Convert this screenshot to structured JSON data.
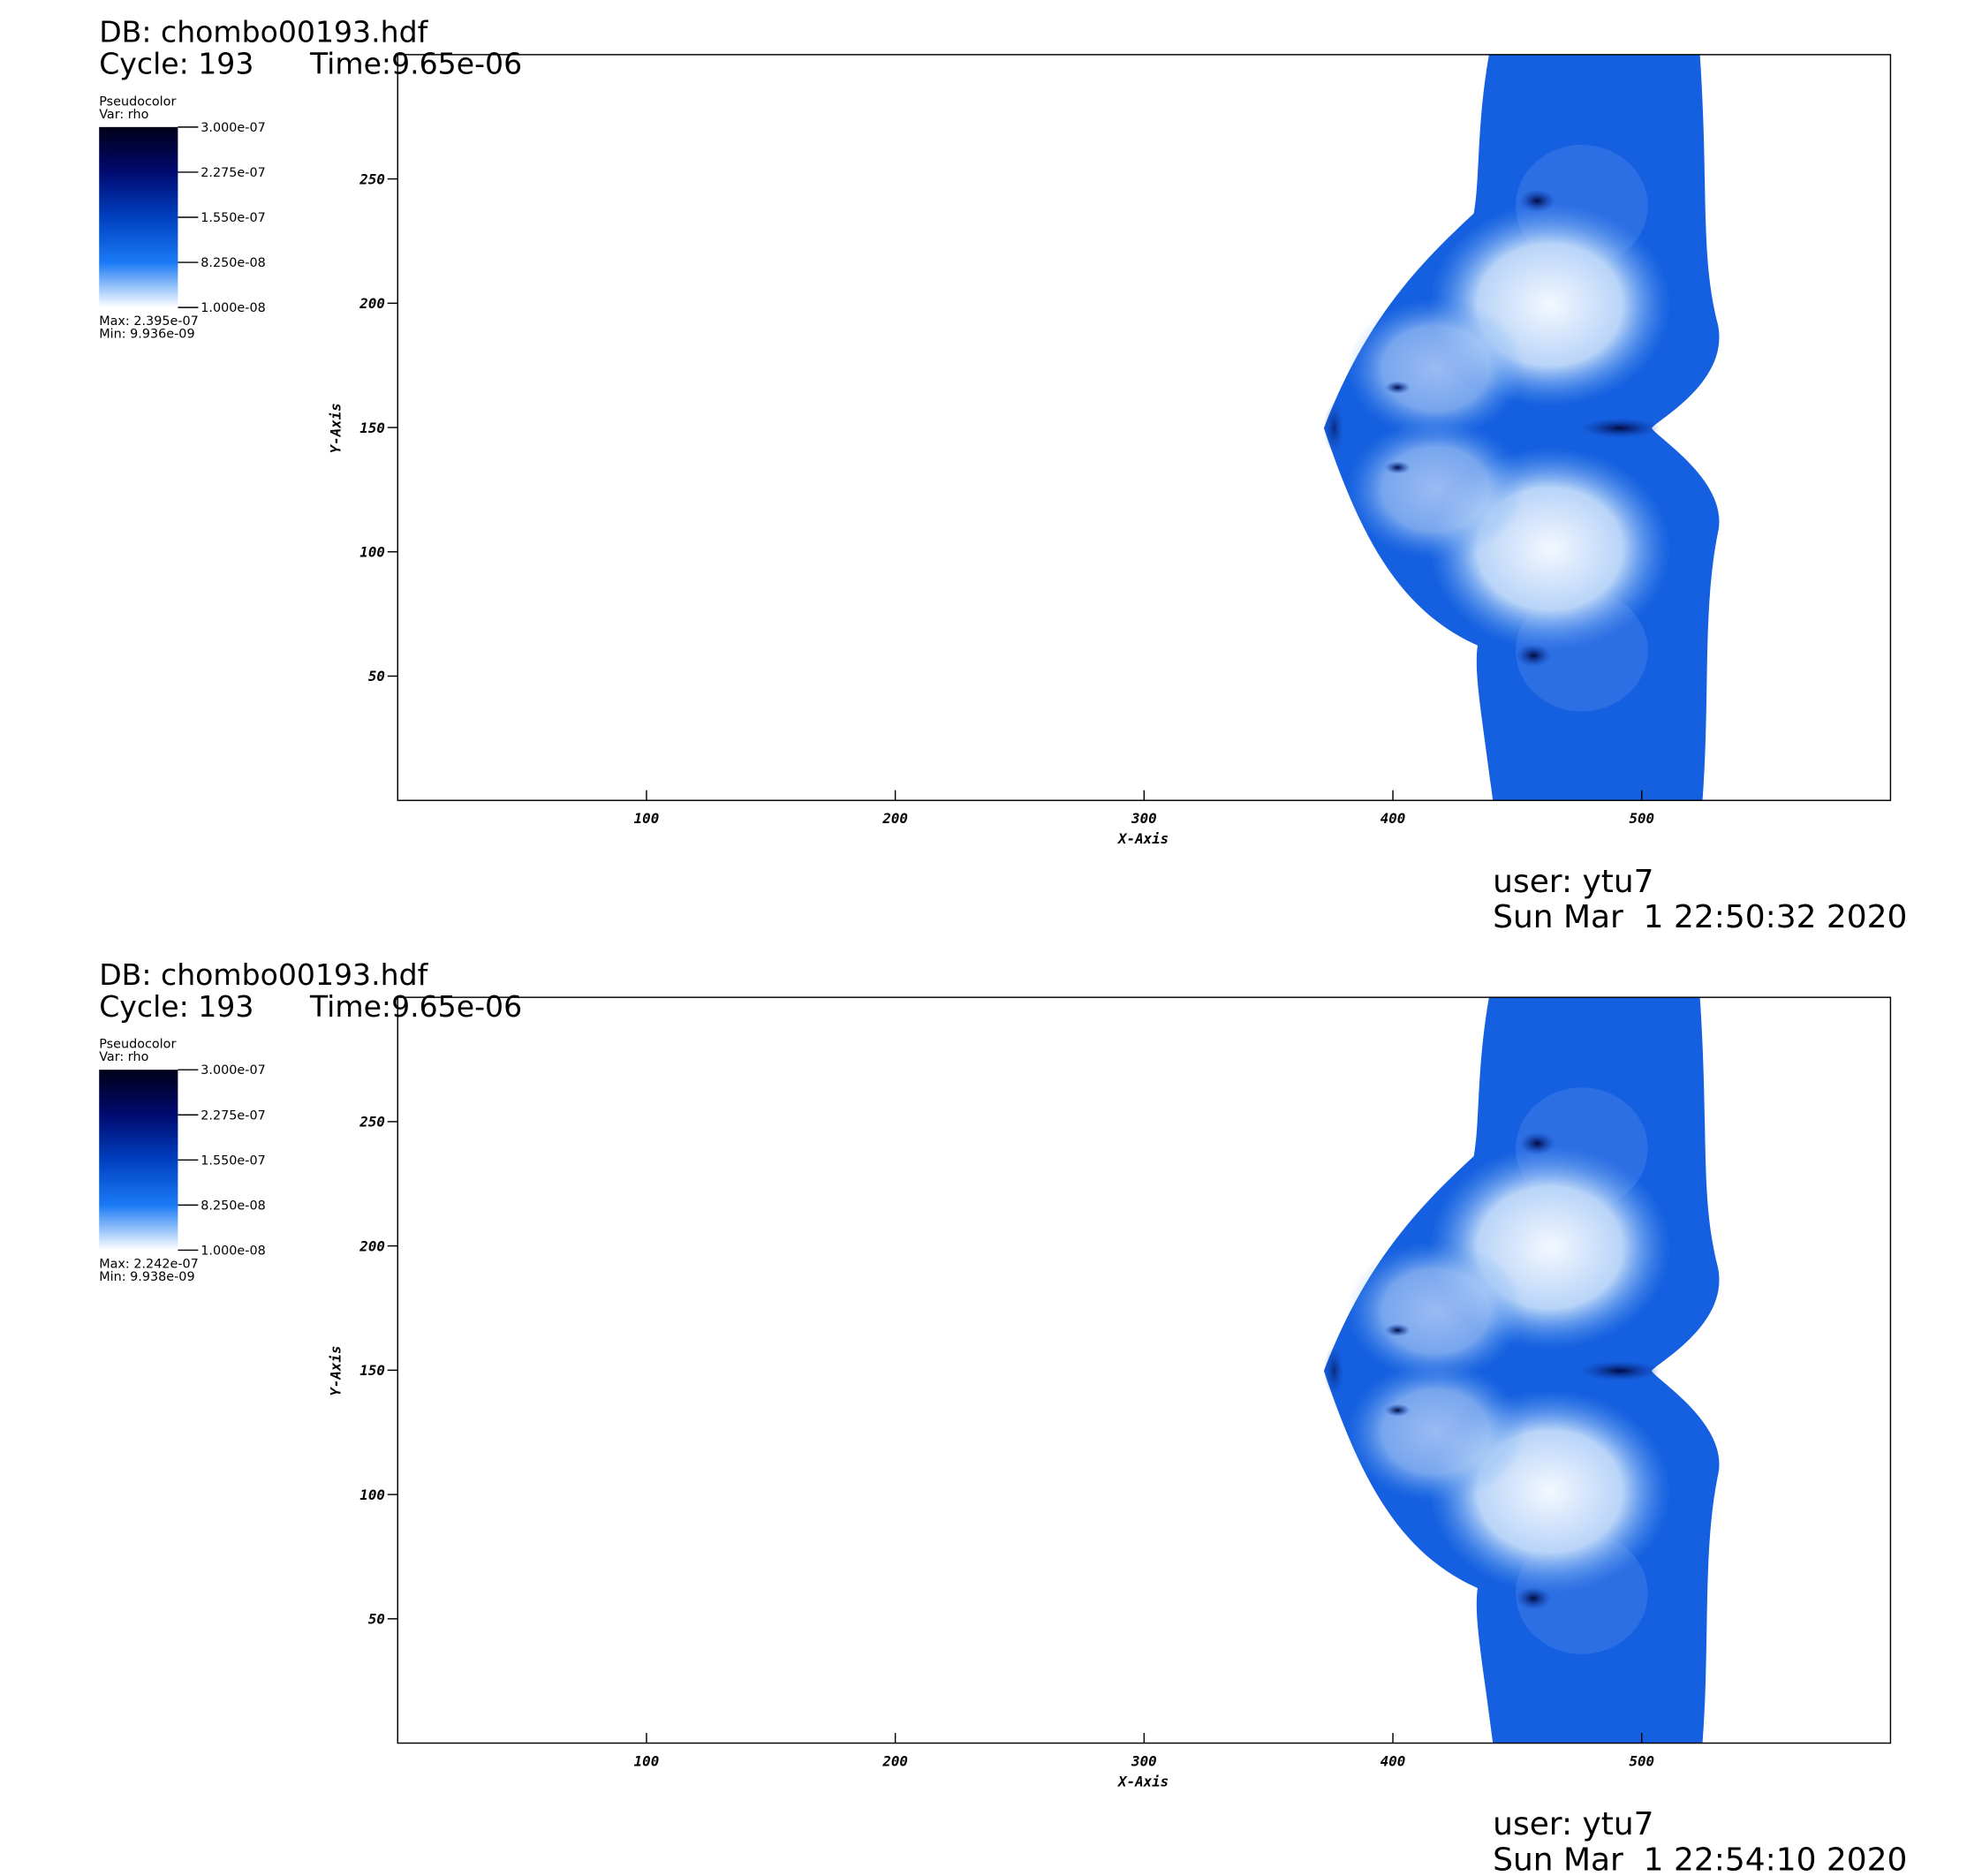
{
  "chart_data": [
    {
      "type": "pseudocolor",
      "title": "DB: chombo00193.hdf",
      "cycle": "Cycle: 193",
      "time": "Time:9.65e-06",
      "legend_title": "Pseudocolor",
      "variable": "Var: rho",
      "colorbar_lim": [
        1e-08,
        3e-07
      ],
      "colorbar_ticks": [
        {
          "value": 3e-07,
          "label": "3.000e-07"
        },
        {
          "value": 2.275e-07,
          "label": "2.275e-07"
        },
        {
          "value": 1.55e-07,
          "label": "1.550e-07"
        },
        {
          "value": 8.25e-08,
          "label": "8.250e-08"
        },
        {
          "value": 1e-08,
          "label": "1.000e-08"
        }
      ],
      "max": "Max: 2.395e-07",
      "min": "Min: 9.936e-09",
      "xlabel": "X-Axis",
      "ylabel": "Y-Axis",
      "xlim": [
        0,
        600
      ],
      "ylim": [
        0,
        300
      ],
      "xticks": [
        100,
        200,
        300,
        400,
        500
      ],
      "yticks": [
        50,
        100,
        150,
        200,
        250
      ],
      "user": "user: ytu7",
      "date": "Sun Mar  1 22:50:32 2020"
    },
    {
      "type": "pseudocolor",
      "title": "DB: chombo00193.hdf",
      "cycle": "Cycle: 193",
      "time": "Time:9.65e-06",
      "legend_title": "Pseudocolor",
      "variable": "Var: rho",
      "colorbar_lim": [
        1e-08,
        3e-07
      ],
      "colorbar_ticks": [
        {
          "value": 3e-07,
          "label": "3.000e-07"
        },
        {
          "value": 2.275e-07,
          "label": "2.275e-07"
        },
        {
          "value": 1.55e-07,
          "label": "1.550e-07"
        },
        {
          "value": 8.25e-08,
          "label": "8.250e-08"
        },
        {
          "value": 1e-08,
          "label": "1.000e-08"
        }
      ],
      "max": "Max: 2.242e-07",
      "min": "Min: 9.938e-09",
      "xlabel": "X-Axis",
      "ylabel": "Y-Axis",
      "xlim": [
        0,
        600
      ],
      "ylim": [
        0,
        300
      ],
      "xticks": [
        100,
        200,
        300,
        400,
        500
      ],
      "yticks": [
        50,
        100,
        150,
        200,
        250
      ],
      "user": "user: ytu7",
      "date": "Sun Mar  1 22:54:10 2020"
    }
  ]
}
